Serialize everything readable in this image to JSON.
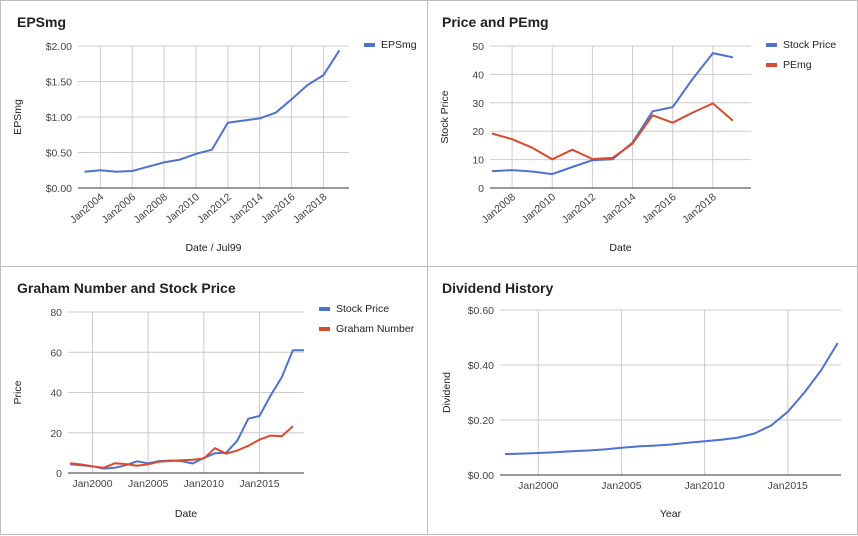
{
  "colors": {
    "blue": "#4e72d0",
    "red": "#dc4a2e",
    "grid": "#cccccc",
    "axis": "#333333"
  },
  "chart_data": [
    {
      "id": "p1",
      "type": "line",
      "title": "EPSmg",
      "xlabel": "Date / Jul99",
      "ylabel": "EPSmg",
      "xlim": [
        2002.6,
        2019.6
      ],
      "ylim": [
        0,
        2.0
      ],
      "yticks": [
        0,
        0.5,
        1.0,
        1.5,
        2.0
      ],
      "ytick_labels": [
        "$0.00",
        "$0.50",
        "$1.00",
        "$1.50",
        "$2.00"
      ],
      "xticks": [
        2004,
        2006,
        2008,
        2010,
        2012,
        2014,
        2016,
        2018
      ],
      "xtick_labels": [
        "Jan2004",
        "Jan2006",
        "Jan2008",
        "Jan2010",
        "Jan2012",
        "Jan2014",
        "Jan2016",
        "Jan2018"
      ],
      "xtick_rotate": true,
      "grid_x": true,
      "legend_position": "right",
      "series": [
        {
          "name": "EPSmg",
          "color": "#4e72d0",
          "x": [
            2003,
            2004,
            2005,
            2006,
            2007,
            2008,
            2009,
            2010,
            2011,
            2012,
            2013,
            2014,
            2015,
            2016,
            2017,
            2018,
            2019
          ],
          "y": [
            0.23,
            0.25,
            0.23,
            0.24,
            0.3,
            0.36,
            0.4,
            0.48,
            0.54,
            0.92,
            0.95,
            0.98,
            1.06,
            1.25,
            1.45,
            1.59,
            1.94
          ]
        }
      ]
    },
    {
      "id": "p2",
      "type": "line",
      "title": "Price and PEmg",
      "xlabel": "Date",
      "ylabel": "Stock Price",
      "xlim": [
        2006.9,
        2019.9
      ],
      "ylim": [
        0,
        50
      ],
      "yticks": [
        0,
        10,
        20,
        30,
        40,
        50
      ],
      "ytick_labels": [
        "0",
        "10",
        "20",
        "30",
        "40",
        "50"
      ],
      "xticks": [
        2008,
        2010,
        2012,
        2014,
        2016,
        2018
      ],
      "xtick_labels": [
        "Jan2008",
        "Jan2010",
        "Jan2012",
        "Jan2014",
        "Jan2016",
        "Jan2018"
      ],
      "xtick_rotate": true,
      "grid_x": true,
      "legend_position": "right",
      "series": [
        {
          "name": "Stock Price",
          "color": "#4e72d0",
          "x": [
            2007,
            2008,
            2009,
            2010,
            2011,
            2012,
            2013,
            2014,
            2015,
            2016,
            2017,
            2018,
            2019
          ],
          "y": [
            5.9,
            6.3,
            5.8,
            4.9,
            7.4,
            9.8,
            10.1,
            16.0,
            27.0,
            28.5,
            38.5,
            47.5,
            46.0
          ]
        },
        {
          "name": "PEmg",
          "color": "#dc4a2e",
          "x": [
            2007,
            2008,
            2009,
            2010,
            2011,
            2012,
            2013,
            2014,
            2015,
            2016,
            2017,
            2018,
            2019
          ],
          "y": [
            19.2,
            17.2,
            14.2,
            10.1,
            13.5,
            10.2,
            10.6,
            15.6,
            25.6,
            23.0,
            26.6,
            29.8,
            23.7
          ]
        }
      ]
    },
    {
      "id": "p3",
      "type": "line",
      "title": "Graham Number and Stock Price",
      "xlabel": "Date",
      "ylabel": "Price",
      "xlim": [
        1997.8,
        2019.0
      ],
      "ylim": [
        0,
        80
      ],
      "yticks": [
        0,
        20,
        40,
        60,
        80
      ],
      "ytick_labels": [
        "0",
        "20",
        "40",
        "60",
        "80"
      ],
      "xticks": [
        2000,
        2005,
        2010,
        2015
      ],
      "xtick_labels": [
        "Jan2000",
        "Jan2005",
        "Jan2010",
        "Jan2015"
      ],
      "xtick_rotate": false,
      "grid_x": true,
      "legend_position": "right",
      "series": [
        {
          "name": "Stock Price",
          "color": "#4e72d0",
          "x": [
            1998,
            1999,
            2000,
            2001,
            2002,
            2003,
            2004,
            2005,
            2006,
            2007,
            2008,
            2009,
            2010,
            2011,
            2012,
            2013,
            2014,
            2015,
            2016,
            2017,
            2018,
            2019
          ],
          "y": [
            4.3,
            3.9,
            3.4,
            2.2,
            2.6,
            3.9,
            5.8,
            4.8,
            5.9,
            6.2,
            5.9,
            4.7,
            7.5,
            9.8,
            10.1,
            16.0,
            27.0,
            28.3,
            38.5,
            47.5,
            61.0,
            61.0
          ]
        },
        {
          "name": "Graham Number",
          "color": "#dc4a2e",
          "x": [
            1998,
            1999,
            2000,
            2001,
            2002,
            2003,
            2004,
            2005,
            2006,
            2007,
            2008,
            2009,
            2010,
            2011,
            2012,
            2013,
            2014,
            2015,
            2016,
            2017,
            2018
          ],
          "y": [
            4.8,
            4.2,
            3.3,
            2.6,
            4.8,
            4.4,
            3.6,
            4.3,
            5.6,
            6.0,
            6.3,
            6.6,
            7.2,
            12.3,
            9.6,
            11.2,
            13.5,
            16.6,
            18.6,
            18.3,
            23.2
          ]
        }
      ]
    },
    {
      "id": "p4",
      "type": "line",
      "title": "Dividend History",
      "xlabel": "Year",
      "ylabel": "Dividend",
      "xlim": [
        1997.7,
        2018.2
      ],
      "ylim": [
        0,
        0.6
      ],
      "yticks": [
        0,
        0.2,
        0.4,
        0.6
      ],
      "ytick_labels": [
        "$0.00",
        "$0.20",
        "$0.40",
        "$0.60"
      ],
      "xticks": [
        2000,
        2005,
        2010,
        2015
      ],
      "xtick_labels": [
        "Jan2000",
        "Jan2005",
        "Jan2010",
        "Jan2015"
      ],
      "xtick_rotate": false,
      "grid_x": true,
      "legend_position": "none",
      "series": [
        {
          "name": "",
          "color": "#4e72d0",
          "x": [
            1998,
            1999,
            2000,
            2001,
            2002,
            2003,
            2004,
            2005,
            2006,
            2007,
            2008,
            2009,
            2010,
            2011,
            2012,
            2013,
            2014,
            2015,
            2016,
            2017,
            2018
          ],
          "y": [
            0.076,
            0.078,
            0.08,
            0.083,
            0.086,
            0.089,
            0.093,
            0.099,
            0.104,
            0.107,
            0.111,
            0.117,
            0.123,
            0.128,
            0.136,
            0.151,
            0.18,
            0.23,
            0.3,
            0.38,
            0.48
          ]
        }
      ]
    }
  ]
}
